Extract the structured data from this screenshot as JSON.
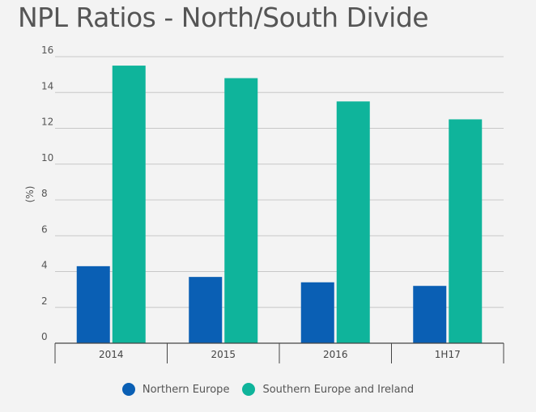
{
  "chart_data": {
    "type": "bar",
    "title": "NPL Ratios - North/South Divide",
    "ylabel": "(%)",
    "xlabel": "",
    "categories": [
      "2014",
      "2015",
      "2016",
      "1H17"
    ],
    "series": [
      {
        "name": "Northern Europe",
        "color": "#0a5fb4",
        "values": [
          4.3,
          3.7,
          3.4,
          3.2
        ]
      },
      {
        "name": "Southern Europe and Ireland",
        "color": "#0fb49b",
        "values": [
          15.5,
          14.8,
          13.5,
          12.5
        ]
      }
    ],
    "ylim": [
      0,
      16
    ],
    "yticks": [
      0,
      2,
      4,
      6,
      8,
      10,
      12,
      14,
      16
    ],
    "grid": true,
    "legend_position": "bottom"
  }
}
